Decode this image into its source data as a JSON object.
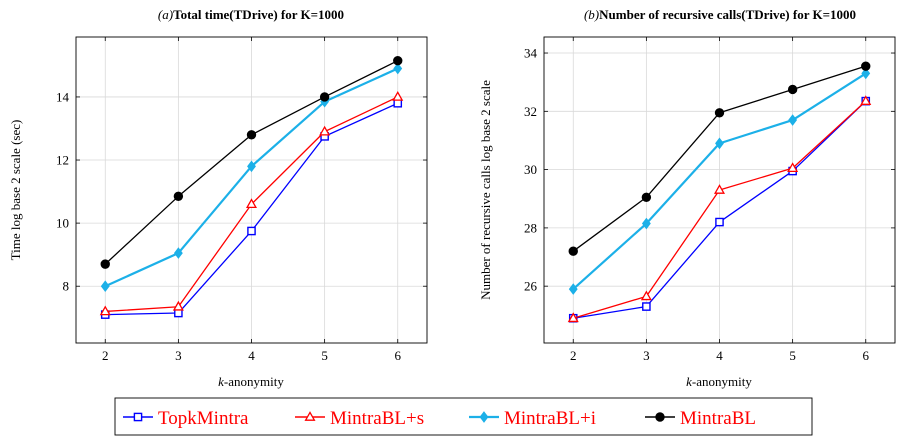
{
  "chart_data": [
    {
      "type": "line",
      "panel_tag": "(a)",
      "title": "Total time(TDrive) for K=1000",
      "xlabel_prefix": "k",
      "xlabel_suffix": "-anonymity",
      "ylabel": "Time log base 2 scale (sec)",
      "x": [
        2,
        3,
        4,
        5,
        6
      ],
      "xlim": [
        1.6,
        6.4
      ],
      "ylim": [
        6.2,
        15.9
      ],
      "yticks": [
        8,
        10,
        12,
        14
      ],
      "grid": true,
      "series": [
        {
          "name": "TopkMintra",
          "values": [
            7.1,
            7.15,
            9.75,
            12.75,
            13.8
          ]
        },
        {
          "name": "MintraBL+s",
          "values": [
            7.2,
            7.35,
            10.6,
            12.9,
            14.0
          ]
        },
        {
          "name": "MintraBL+i",
          "values": [
            8.0,
            9.05,
            11.8,
            13.85,
            14.9
          ]
        },
        {
          "name": "MintraBL",
          "values": [
            8.7,
            10.85,
            12.8,
            14.0,
            15.15
          ]
        }
      ]
    },
    {
      "type": "line",
      "panel_tag": "(b)",
      "title": "Number of recursive calls(TDrive) for K=1000",
      "xlabel_prefix": "k",
      "xlabel_suffix": "-anonymity",
      "ylabel": "Number of recursive calls log base 2 scale",
      "x": [
        2,
        3,
        4,
        5,
        6
      ],
      "xlim": [
        1.6,
        6.4
      ],
      "ylim": [
        24.05,
        34.55
      ],
      "yticks": [
        26,
        28,
        30,
        32,
        34
      ],
      "grid": true,
      "series": [
        {
          "name": "TopkMintra",
          "values": [
            24.9,
            25.3,
            28.2,
            29.95,
            32.35
          ]
        },
        {
          "name": "MintraBL+s",
          "values": [
            24.9,
            25.65,
            29.3,
            30.05,
            32.35
          ]
        },
        {
          "name": "MintraBL+i",
          "values": [
            25.9,
            28.15,
            30.9,
            31.7,
            33.3
          ]
        },
        {
          "name": "MintraBL",
          "values": [
            27.2,
            29.05,
            31.95,
            32.75,
            33.55
          ]
        }
      ]
    }
  ],
  "legend": {
    "placement": "bottom-center",
    "entries": [
      {
        "label": "TopkMintra",
        "color": "#0000ff",
        "marker": "square"
      },
      {
        "label": "MintraBL+s",
        "color": "#ff0000",
        "marker": "triangle"
      },
      {
        "label": "MintraBL+i",
        "color": "#1cb0e8",
        "marker": "diamond"
      },
      {
        "label": "MintraBL",
        "color": "#000000",
        "marker": "circle"
      }
    ]
  },
  "series_styles": [
    {
      "color": "#0000ff",
      "marker": "square",
      "width": 1.3
    },
    {
      "color": "#ff0000",
      "marker": "triangle",
      "width": 1.3
    },
    {
      "color": "#1cb0e8",
      "marker": "diamond",
      "width": 2.2
    },
    {
      "color": "#000000",
      "marker": "circle",
      "width": 1.3
    }
  ]
}
